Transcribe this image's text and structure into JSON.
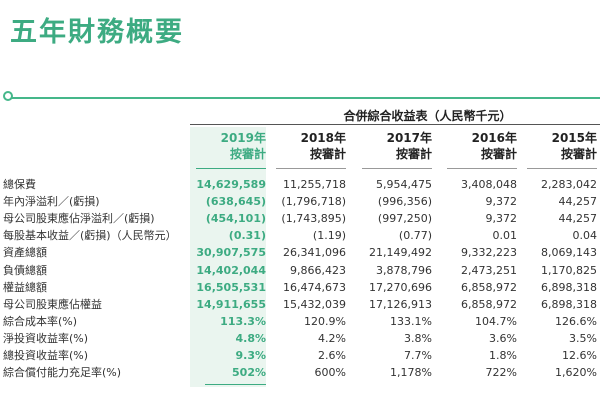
{
  "page": {
    "title": "五年財務概要"
  },
  "table": {
    "caption": "合併綜合收益表（人民幣千元）",
    "columns": [
      {
        "year": "2019年",
        "note": "按審計"
      },
      {
        "year": "2018年",
        "note": "按審計"
      },
      {
        "year": "2017年",
        "note": "按審計"
      },
      {
        "year": "2016年",
        "note": "按審計"
      },
      {
        "year": "2015年",
        "note": "按審計"
      }
    ],
    "rows": [
      {
        "label": "總保費",
        "values": [
          "14,629,589",
          "11,255,718",
          "5,954,475",
          "3,408,048",
          "2,283,042"
        ]
      },
      {
        "label": "年內淨溢利／(虧損)",
        "values": [
          "(638,645)",
          "(1,796,718)",
          "(996,356)",
          "9,372",
          "44,257"
        ]
      },
      {
        "label": "母公司股東應佔淨溢利／(虧損)",
        "values": [
          "(454,101)",
          "(1,743,895)",
          "(997,250)",
          "9,372",
          "44,257"
        ]
      },
      {
        "label": "每股基本收益／(虧損)（人民幣元）",
        "values": [
          "(0.31)",
          "(1.19)",
          "(0.77)",
          "0.01",
          "0.04"
        ]
      },
      {
        "label": "資產總額",
        "values": [
          "30,907,575",
          "26,341,096",
          "21,149,492",
          "9,332,223",
          "8,069,143"
        ]
      },
      {
        "label": "負債總額",
        "values": [
          "14,402,044",
          "9,866,423",
          "3,878,796",
          "2,473,251",
          "1,170,825"
        ]
      },
      {
        "label": "權益總額",
        "values": [
          "16,505,531",
          "16,474,673",
          "17,270,696",
          "6,858,972",
          "6,898,318"
        ]
      },
      {
        "label": "母公司股東應佔權益",
        "values": [
          "14,911,655",
          "15,432,039",
          "17,126,913",
          "6,858,972",
          "6,898,318"
        ]
      },
      {
        "label": "綜合成本率(%)",
        "values": [
          "113.3%",
          "120.9%",
          "133.1%",
          "104.7%",
          "126.6%"
        ]
      },
      {
        "label": "淨投資收益率(%)",
        "values": [
          "4.8%",
          "4.2%",
          "3.8%",
          "3.6%",
          "3.5%"
        ]
      },
      {
        "label": "總投資收益率(%)",
        "values": [
          "9.3%",
          "2.6%",
          "7.7%",
          "1.8%",
          "12.6%"
        ]
      },
      {
        "label": "綜合償付能力充足率(%)",
        "values": [
          "502%",
          "600%",
          "1,178%",
          "722%",
          "1,620%"
        ]
      }
    ]
  },
  "colors": {
    "accent": "#3dab82",
    "highlight_bg": "#eaf5ef"
  }
}
